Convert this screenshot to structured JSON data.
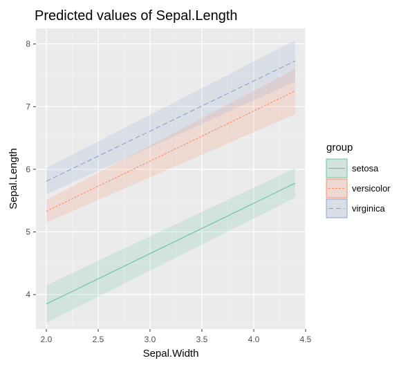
{
  "chart_data": {
    "type": "line",
    "title": "Predicted values of Sepal.Length",
    "xlabel": "Sepal.Width",
    "ylabel": "Sepal.Length",
    "xlim": [
      1.9,
      4.5
    ],
    "ylim": [
      3.45,
      8.25
    ],
    "x_ticks": [
      "2.0",
      "2.5",
      "3.0",
      "3.5",
      "4.0",
      "4.5"
    ],
    "y_ticks": [
      "4",
      "5",
      "6",
      "7",
      "8"
    ],
    "grid": true,
    "legend_title": "group",
    "legend_position": "right",
    "x": [
      2.0,
      4.4
    ],
    "series": [
      {
        "name": "setosa",
        "color": "#66c2a5",
        "dash": "solid",
        "values": [
          3.85,
          5.78
        ],
        "lower": [
          3.55,
          5.55
        ],
        "upper": [
          4.15,
          6.02
        ]
      },
      {
        "name": "versicolor",
        "color": "#fc8d62",
        "dash": "dotted",
        "values": [
          5.33,
          7.25
        ],
        "lower": [
          5.15,
          6.88
        ],
        "upper": [
          5.51,
          7.6
        ]
      },
      {
        "name": "virginica",
        "color": "#8da0cb",
        "dash": "dashed",
        "values": [
          5.81,
          7.73
        ],
        "lower": [
          5.6,
          7.4
        ],
        "upper": [
          6.02,
          8.06
        ]
      }
    ]
  }
}
